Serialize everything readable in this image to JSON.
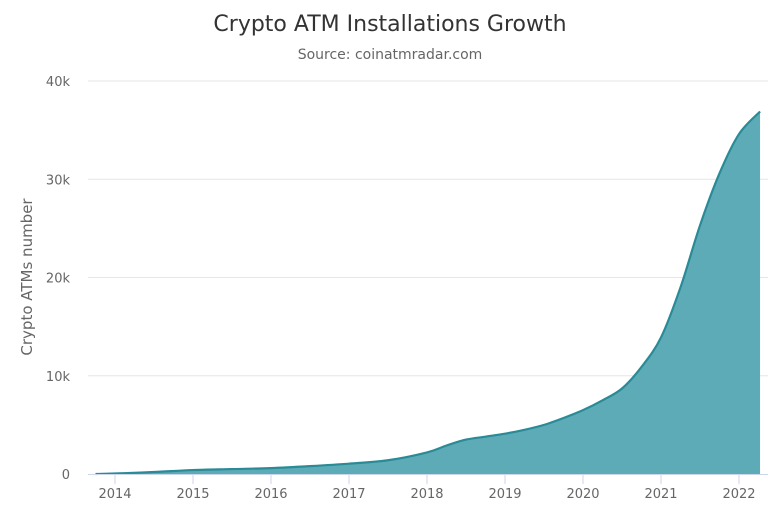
{
  "chart_data": {
    "type": "area",
    "title": "Crypto ATM Installations Growth",
    "subtitle": "Source: coinatmradar.com",
    "xlabel": "",
    "ylabel": "Crypto ATMs number",
    "xlim": [
      2013.75,
      2022.27
    ],
    "ylim": [
      0,
      40000
    ],
    "x_ticks": [
      2014,
      2015,
      2016,
      2017,
      2018,
      2019,
      2020,
      2021,
      2022
    ],
    "y_ticks": [
      0,
      10000,
      20000,
      30000,
      40000
    ],
    "y_tick_labels": [
      "0",
      "10k",
      "20k",
      "30k",
      "40k"
    ],
    "grid": "horizontal",
    "legend": "none",
    "colors": {
      "fill": "#5eabb8",
      "line": "#2a8a96"
    },
    "x": [
      2013.75,
      2014.0,
      2014.5,
      2015.0,
      2015.5,
      2016.0,
      2016.5,
      2017.0,
      2017.5,
      2018.0,
      2018.25,
      2018.5,
      2018.75,
      2019.0,
      2019.25,
      2019.5,
      2019.75,
      2020.0,
      2020.25,
      2020.5,
      2020.75,
      2021.0,
      2021.25,
      2021.5,
      2021.75,
      2022.0,
      2022.27
    ],
    "values": [
      0,
      50,
      200,
      400,
      500,
      600,
      800,
      1050,
      1400,
      2200,
      2900,
      3500,
      3800,
      4100,
      4500,
      5000,
      5700,
      6500,
      7500,
      8700,
      10900,
      13900,
      19000,
      25300,
      30600,
      34600,
      36900
    ]
  }
}
